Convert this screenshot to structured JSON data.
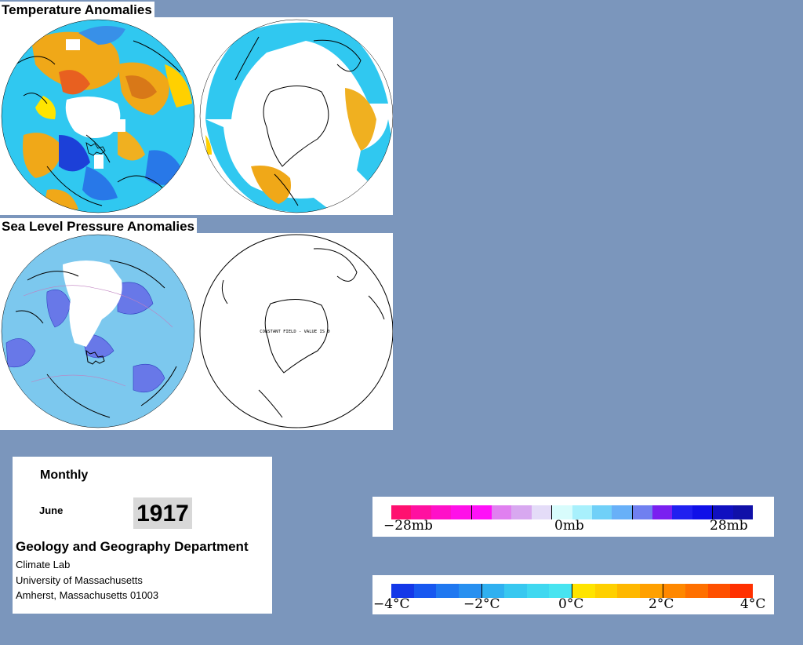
{
  "panels": {
    "temperature_title": "Temperature Anomalies",
    "pressure_title": "Sea Level Pressure Anomalies",
    "pressure_south_note": "CONSTANT FIELD - VALUE IS 0"
  },
  "info": {
    "period": "Monthly",
    "month": "June",
    "year": "1917",
    "department": "Geology and Geography Department",
    "lab": "Climate Lab",
    "university": "University of Massachusetts",
    "address": "Amherst, Massachusetts 01003"
  },
  "pressure_legend": {
    "labels": [
      "−28mb",
      "0mb",
      "28mb"
    ],
    "colors": [
      "#ff1070",
      "#ff10a0",
      "#ff10c8",
      "#ff10e8",
      "#ff10f8",
      "#e080f0",
      "#d8a8f0",
      "#e4dcf8",
      "#d8fcfc",
      "#a8f0fc",
      "#70d0f8",
      "#68b0f8",
      "#7080f0",
      "#7a20f0",
      "#2020f0",
      "#1010e8",
      "#1010c0",
      "#1010a8"
    ]
  },
  "temperature_legend": {
    "labels": [
      "−4°C",
      "−2°C",
      "0°C",
      "2°C",
      "4°C"
    ],
    "colors": [
      "#1438e8",
      "#1858f0",
      "#2078f0",
      "#2890f0",
      "#30b0f0",
      "#38c8f0",
      "#40d8f0",
      "#48e4f0",
      "#ffe400",
      "#ffd000",
      "#ffb800",
      "#ffa000",
      "#ff8800",
      "#ff7000",
      "#ff5000",
      "#ff3000"
    ]
  },
  "colors": {
    "background": "#7b96bc",
    "ocean_cyan": "#30c8f0",
    "warm": "#f0a818",
    "cool": "#2058e0",
    "pressure_base": "#7cc8ee",
    "pressure_low": "#6878e8"
  }
}
